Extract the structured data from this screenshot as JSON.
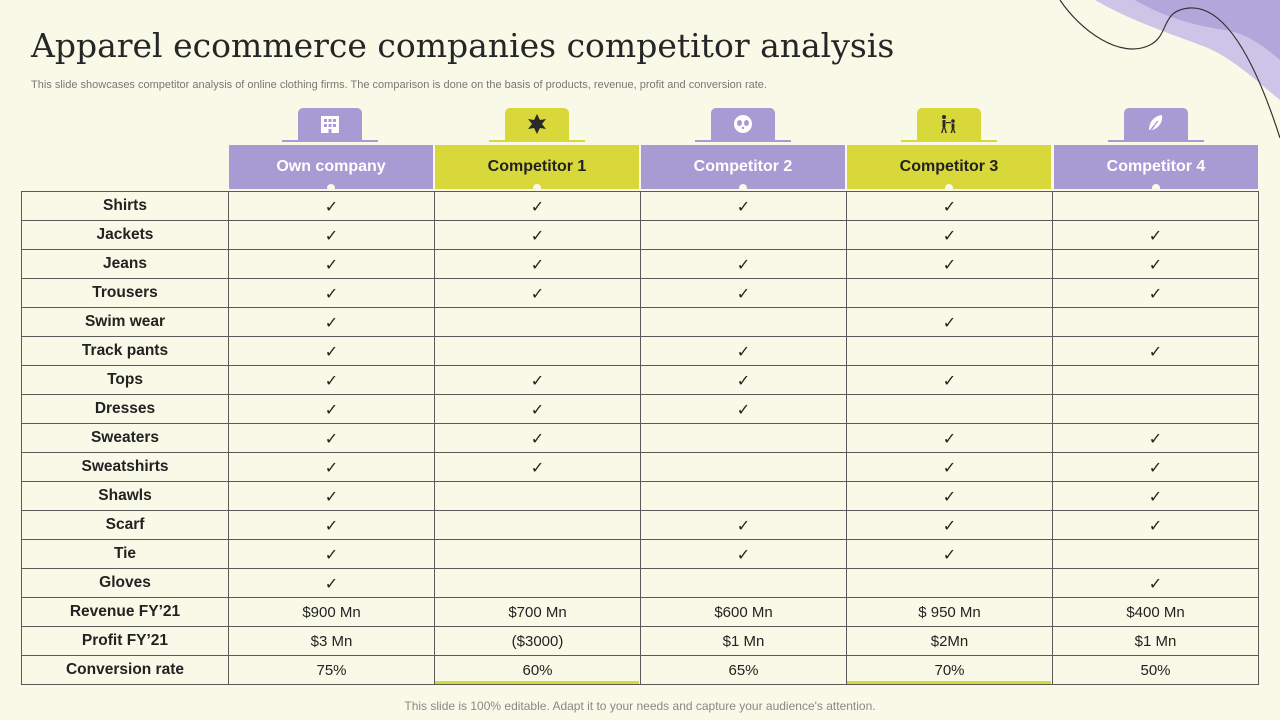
{
  "title": "Apparel ecommerce companies competitor analysis",
  "subtitle": "This slide showcases competitor analysis of online clothing firms. The comparison is done on the basis of products, revenue, profit and conversion rate.",
  "footer": "This slide is 100% editable. Adapt it to your needs and capture your audience's attention.",
  "colors": {
    "purple": "#a89ad2",
    "yellow": "#d9d83a",
    "background": "#f9f9e8"
  },
  "check_mark": "✓",
  "columns": [
    {
      "label": "Own company",
      "icon": "building-icon",
      "theme": "purple"
    },
    {
      "label": "Competitor 1",
      "icon": "leaf-icon",
      "theme": "yellow"
    },
    {
      "label": "Competitor 2",
      "icon": "panda-icon",
      "theme": "purple"
    },
    {
      "label": "Competitor 3",
      "icon": "family-icon",
      "theme": "yellow"
    },
    {
      "label": "Competitor 4",
      "icon": "feather-icon",
      "theme": "purple"
    }
  ],
  "product_rows": [
    {
      "label": "Shirts",
      "checks": [
        true,
        true,
        true,
        true,
        false
      ]
    },
    {
      "label": "Jackets",
      "checks": [
        true,
        true,
        false,
        true,
        true
      ]
    },
    {
      "label": "Jeans",
      "checks": [
        true,
        true,
        true,
        true,
        true
      ]
    },
    {
      "label": "Trousers",
      "checks": [
        true,
        true,
        true,
        false,
        true
      ]
    },
    {
      "label": "Swim wear",
      "checks": [
        true,
        false,
        false,
        true,
        false
      ]
    },
    {
      "label": "Track pants",
      "checks": [
        true,
        false,
        true,
        false,
        true
      ]
    },
    {
      "label": "Tops",
      "checks": [
        true,
        true,
        true,
        true,
        false
      ]
    },
    {
      "label": "Dresses",
      "checks": [
        true,
        true,
        true,
        false,
        false
      ]
    },
    {
      "label": "Sweaters",
      "checks": [
        true,
        true,
        false,
        true,
        true
      ]
    },
    {
      "label": "Sweatshirts",
      "checks": [
        true,
        true,
        false,
        true,
        true
      ]
    },
    {
      "label": "Shawls",
      "checks": [
        true,
        false,
        false,
        true,
        true
      ]
    },
    {
      "label": "Scarf",
      "checks": [
        true,
        false,
        true,
        true,
        true
      ]
    },
    {
      "label": "Tie",
      "checks": [
        true,
        false,
        true,
        true,
        false
      ]
    },
    {
      "label": "Gloves",
      "checks": [
        true,
        false,
        false,
        false,
        true
      ]
    }
  ],
  "metric_rows": [
    {
      "label": "Revenue FY’21",
      "values": [
        "$900 Mn",
        "$700 Mn",
        "$600 Mn",
        "$ 950 Mn",
        "$400 Mn"
      ]
    },
    {
      "label": "Profit FY’21",
      "values": [
        "$3 Mn",
        "($3000)",
        "$1 Mn",
        "$2Mn",
        "$1 Mn"
      ]
    },
    {
      "label": "Conversion rate",
      "values": [
        "75%",
        "60%",
        "65%",
        "70%",
        "50%"
      ]
    }
  ]
}
